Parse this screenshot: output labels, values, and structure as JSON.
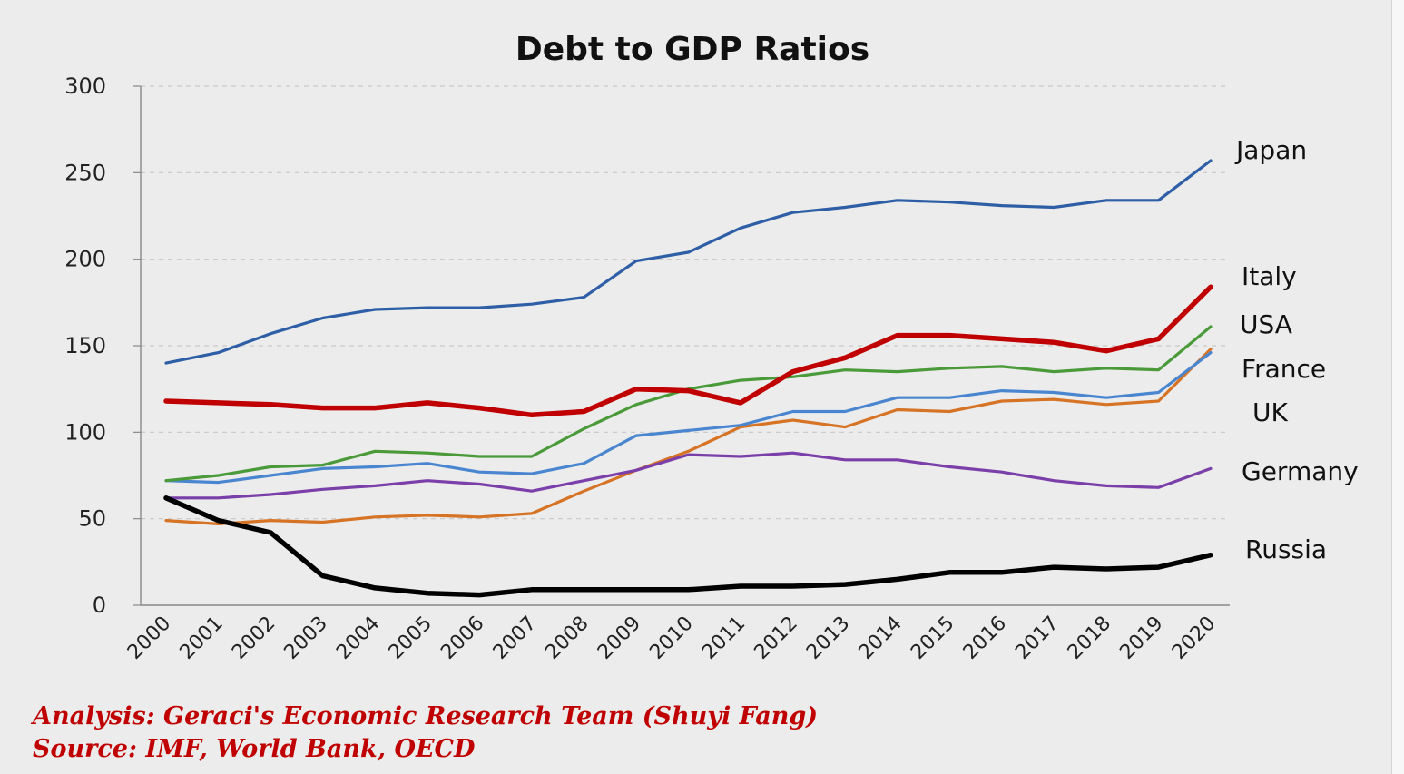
{
  "chart_data": {
    "type": "line",
    "title": "Debt to GDP Ratios",
    "xlabel": "",
    "ylabel": "",
    "ylim": [
      0,
      300
    ],
    "yticks": [
      0,
      50,
      100,
      150,
      200,
      250,
      300
    ],
    "grid": "horizontal-dashed",
    "x": [
      "2000",
      "2001",
      "2002",
      "2003",
      "2004",
      "2005",
      "2006",
      "2007",
      "2008",
      "2009",
      "2010",
      "2011",
      "2012",
      "2013",
      "2014",
      "2015",
      "2016",
      "2017",
      "2018",
      "2019",
      "2020"
    ],
    "series": [
      {
        "name": "Japan",
        "color": "#2e5fa6",
        "stroke_weight": "normal",
        "values": [
          140,
          146,
          157,
          166,
          171,
          172,
          172,
          174,
          178,
          199,
          204,
          218,
          227,
          230,
          234,
          233,
          231,
          230,
          234,
          234,
          257
        ]
      },
      {
        "name": "Italy",
        "color": "#c00000",
        "stroke_weight": "bold",
        "values": [
          118,
          117,
          116,
          114,
          114,
          117,
          114,
          110,
          112,
          125,
          124,
          117,
          135,
          143,
          156,
          156,
          154,
          152,
          147,
          154,
          184
        ]
      },
      {
        "name": "USA",
        "color": "#4a9a3a",
        "stroke_weight": "normal",
        "values": [
          72,
          75,
          80,
          81,
          89,
          88,
          86,
          86,
          102,
          116,
          125,
          130,
          132,
          136,
          135,
          137,
          138,
          135,
          137,
          136,
          161
        ]
      },
      {
        "name": "France",
        "color": "#4a86d0",
        "stroke_weight": "normal",
        "values": [
          72,
          71,
          75,
          79,
          80,
          82,
          77,
          76,
          82,
          98,
          101,
          104,
          112,
          112,
          120,
          120,
          124,
          123,
          120,
          123,
          146
        ]
      },
      {
        "name": "UK",
        "color": "#d67324",
        "stroke_weight": "normal",
        "values": [
          49,
          47,
          49,
          48,
          51,
          52,
          51,
          53,
          66,
          78,
          89,
          103,
          107,
          103,
          113,
          112,
          118,
          119,
          116,
          118,
          148
        ]
      },
      {
        "name": "Germany",
        "color": "#7a3fa8",
        "stroke_weight": "normal",
        "values": [
          62,
          62,
          64,
          67,
          69,
          72,
          70,
          66,
          72,
          78,
          87,
          86,
          88,
          84,
          84,
          80,
          77,
          72,
          69,
          68,
          79
        ]
      },
      {
        "name": "Russia",
        "color": "#000000",
        "stroke_weight": "bold",
        "values": [
          62,
          49,
          42,
          17,
          10,
          7,
          6,
          9,
          9,
          9,
          9,
          11,
          11,
          12,
          15,
          19,
          19,
          22,
          21,
          22,
          29
        ]
      }
    ],
    "annotations": [
      "Analysis: Geraci's Economic Research Team (Shuyi Fang)",
      "Source: IMF, World Bank, OECD"
    ]
  }
}
